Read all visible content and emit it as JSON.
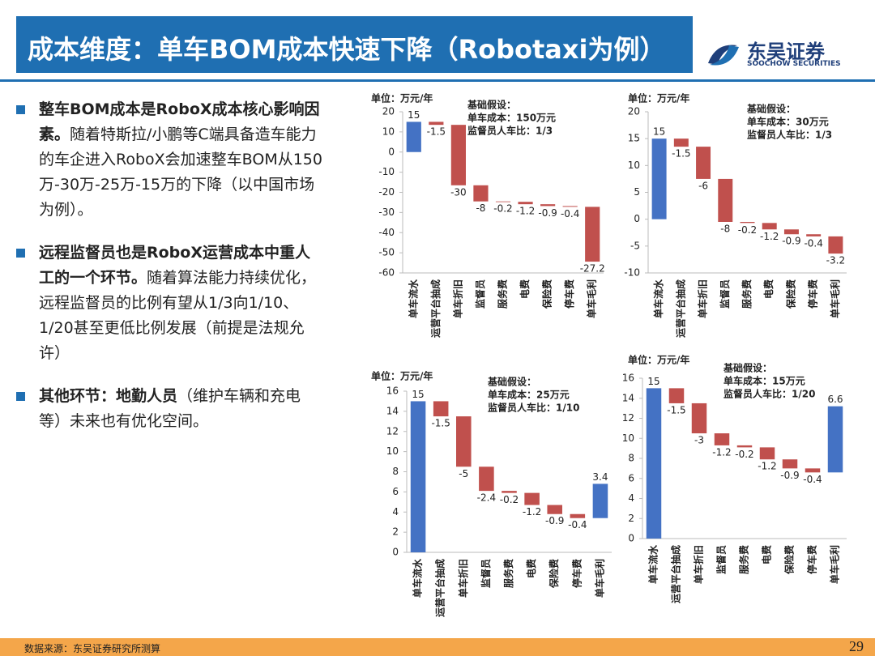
{
  "header": {
    "title": "成本维度：单车BOM成本快速下降（Robotaxi为例）",
    "logo_cn": "东吴证券",
    "logo_en": "SOOCHOW SECURITIES"
  },
  "bullets": [
    {
      "bold": "整车BOM成本是RoboX成本核心影响因素。",
      "text": "随着特斯拉/小鹏等C端具备造车能力的车企进入RoboX会加速整车BOM从150万-30万-25万-15万的下降（以中国市场为例）。"
    },
    {
      "bold": "远程监督员也是RoboX运营成本中重人工的一个环节。",
      "text": "随着算法能力持续优化，远程监督员的比例有望从1/3向1/10、1/20甚至更低比例发展（前提是法规允许）"
    },
    {
      "bold": "其他环节：地勤人员",
      "text": "（维护车辆和充电等）未来也有优化空间。"
    }
  ],
  "chart_data": [
    {
      "type": "waterfall",
      "y_label": "单位：万元/年",
      "annotations": [
        "基础假设：",
        "单车成本：150万元",
        "监督员人车比：1/3"
      ],
      "categories": [
        "单车流水",
        "运营平台抽成",
        "单车折旧",
        "监督员",
        "服务费",
        "电费",
        "保险费",
        "停车费",
        "单车毛利"
      ],
      "values": [
        15,
        -1.5,
        -30,
        -8,
        -0.2,
        -1.2,
        -0.9,
        -0.4,
        -27.2
      ],
      "ylim": [
        -60,
        20
      ],
      "yticks": [
        -60,
        -50,
        -40,
        -30,
        -20,
        -10,
        0,
        10,
        20
      ],
      "positive_color": "#4472c4",
      "negative_color": "#c0504d"
    },
    {
      "type": "waterfall",
      "y_label": "单位：万元/年",
      "annotations": [
        "基础假设：",
        "单车成本：30万元",
        "监督员人车比：1/3"
      ],
      "categories": [
        "单车流水",
        "运营平台抽成",
        "单车折旧",
        "监督员",
        "服务费",
        "电费",
        "保险费",
        "停车费",
        "单车毛利"
      ],
      "values": [
        15,
        -1.5,
        -6,
        -8,
        -0.2,
        -1.2,
        -0.9,
        -0.4,
        -3.2
      ],
      "ylim": [
        -10,
        20
      ],
      "yticks": [
        -10,
        -5,
        0,
        5,
        10,
        15,
        20
      ],
      "positive_color": "#4472c4",
      "negative_color": "#c0504d"
    },
    {
      "type": "waterfall",
      "y_label": "单位：万元/年",
      "annotations": [
        "基础假设：",
        "单车成本：25万元",
        "监督员人车比：1/10"
      ],
      "categories": [
        "单车流水",
        "运营平台抽成",
        "单车折旧",
        "监督员",
        "服务费",
        "电费",
        "保险费",
        "停车费",
        "单车毛利"
      ],
      "values": [
        15,
        -1.5,
        -5,
        -2.4,
        -0.2,
        -1.2,
        -0.9,
        -0.4,
        3.4
      ],
      "ylim": [
        0,
        16
      ],
      "yticks": [
        0,
        2,
        4,
        6,
        8,
        10,
        12,
        14,
        16
      ],
      "positive_color": "#4472c4",
      "negative_color": "#c0504d"
    },
    {
      "type": "waterfall",
      "y_label": "单位：万元/年",
      "annotations": [
        "基础假设：",
        "单车成本：15万元",
        "监督员人车比：1/20"
      ],
      "categories": [
        "单车流水",
        "运营平台抽成",
        "单车折旧",
        "监督员",
        "服务费",
        "电费",
        "保险费",
        "停车费",
        "单车毛利"
      ],
      "values": [
        15,
        -1.5,
        -3,
        -1.2,
        -0.2,
        -1.2,
        -0.9,
        -0.4,
        6.6
      ],
      "ylim": [
        0,
        16
      ],
      "yticks": [
        0,
        2,
        4,
        6,
        8,
        10,
        12,
        14,
        16
      ],
      "positive_color": "#4472c4",
      "negative_color": "#c0504d"
    }
  ],
  "footer": {
    "source": "数据来源：东吴证券研究所测算",
    "page": "29"
  }
}
